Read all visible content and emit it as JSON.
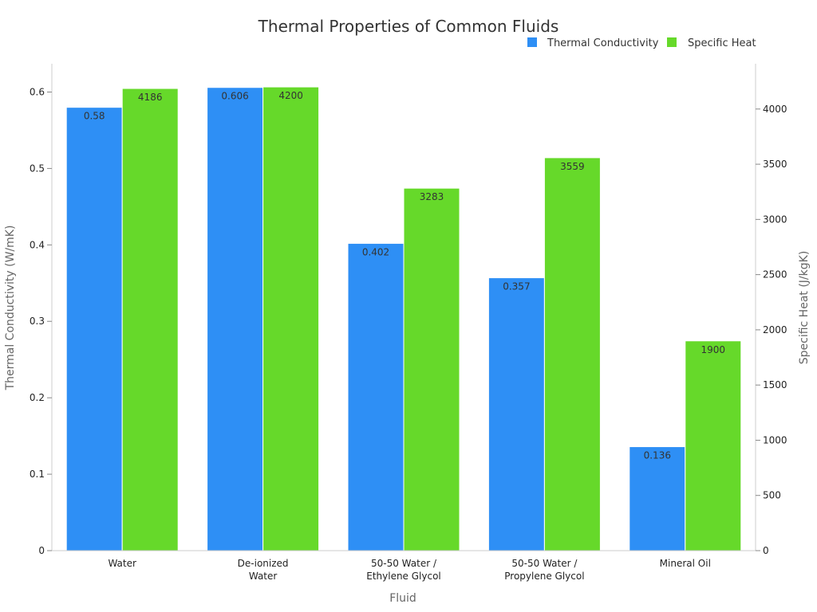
{
  "chart_data": {
    "type": "bar",
    "title": "Thermal Properties of Common Fluids",
    "xlabel": "Fluid",
    "categories": [
      [
        "Water"
      ],
      [
        "De-ionized",
        "Water"
      ],
      [
        "50-50 Water /",
        "Ethylene Glycol"
      ],
      [
        "50-50 Water /",
        "Propylene Glycol"
      ],
      [
        "Mineral Oil"
      ]
    ],
    "series": [
      {
        "name": "Thermal Conductivity",
        "axis": "left",
        "color": "#2E8FF5",
        "values": [
          0.58,
          0.606,
          0.402,
          0.357,
          0.136
        ]
      },
      {
        "name": "Specific Heat",
        "axis": "right",
        "color": "#66D92A",
        "values": [
          4186,
          4200,
          3283,
          3559,
          1900
        ]
      }
    ],
    "y_left": {
      "label": "Thermal Conductivity (W/mK)",
      "lim": [
        0,
        0.637
      ],
      "ticks": [
        "0",
        "0.1",
        "0.2",
        "0.3",
        "0.4",
        "0.5",
        "0.6"
      ],
      "tick_values": [
        0,
        0.1,
        0.2,
        0.3,
        0.4,
        0.5,
        0.6
      ]
    },
    "y_right": {
      "label": "Specific Heat (J/kgK)",
      "lim": [
        0,
        4410
      ],
      "ticks": [
        "0",
        "500",
        "1000",
        "1500",
        "2000",
        "2500",
        "3000",
        "3500",
        "4000"
      ],
      "tick_values": [
        0,
        500,
        1000,
        1500,
        2000,
        2500,
        3000,
        3500,
        4000
      ]
    },
    "legend": "top-right",
    "grid": false
  }
}
